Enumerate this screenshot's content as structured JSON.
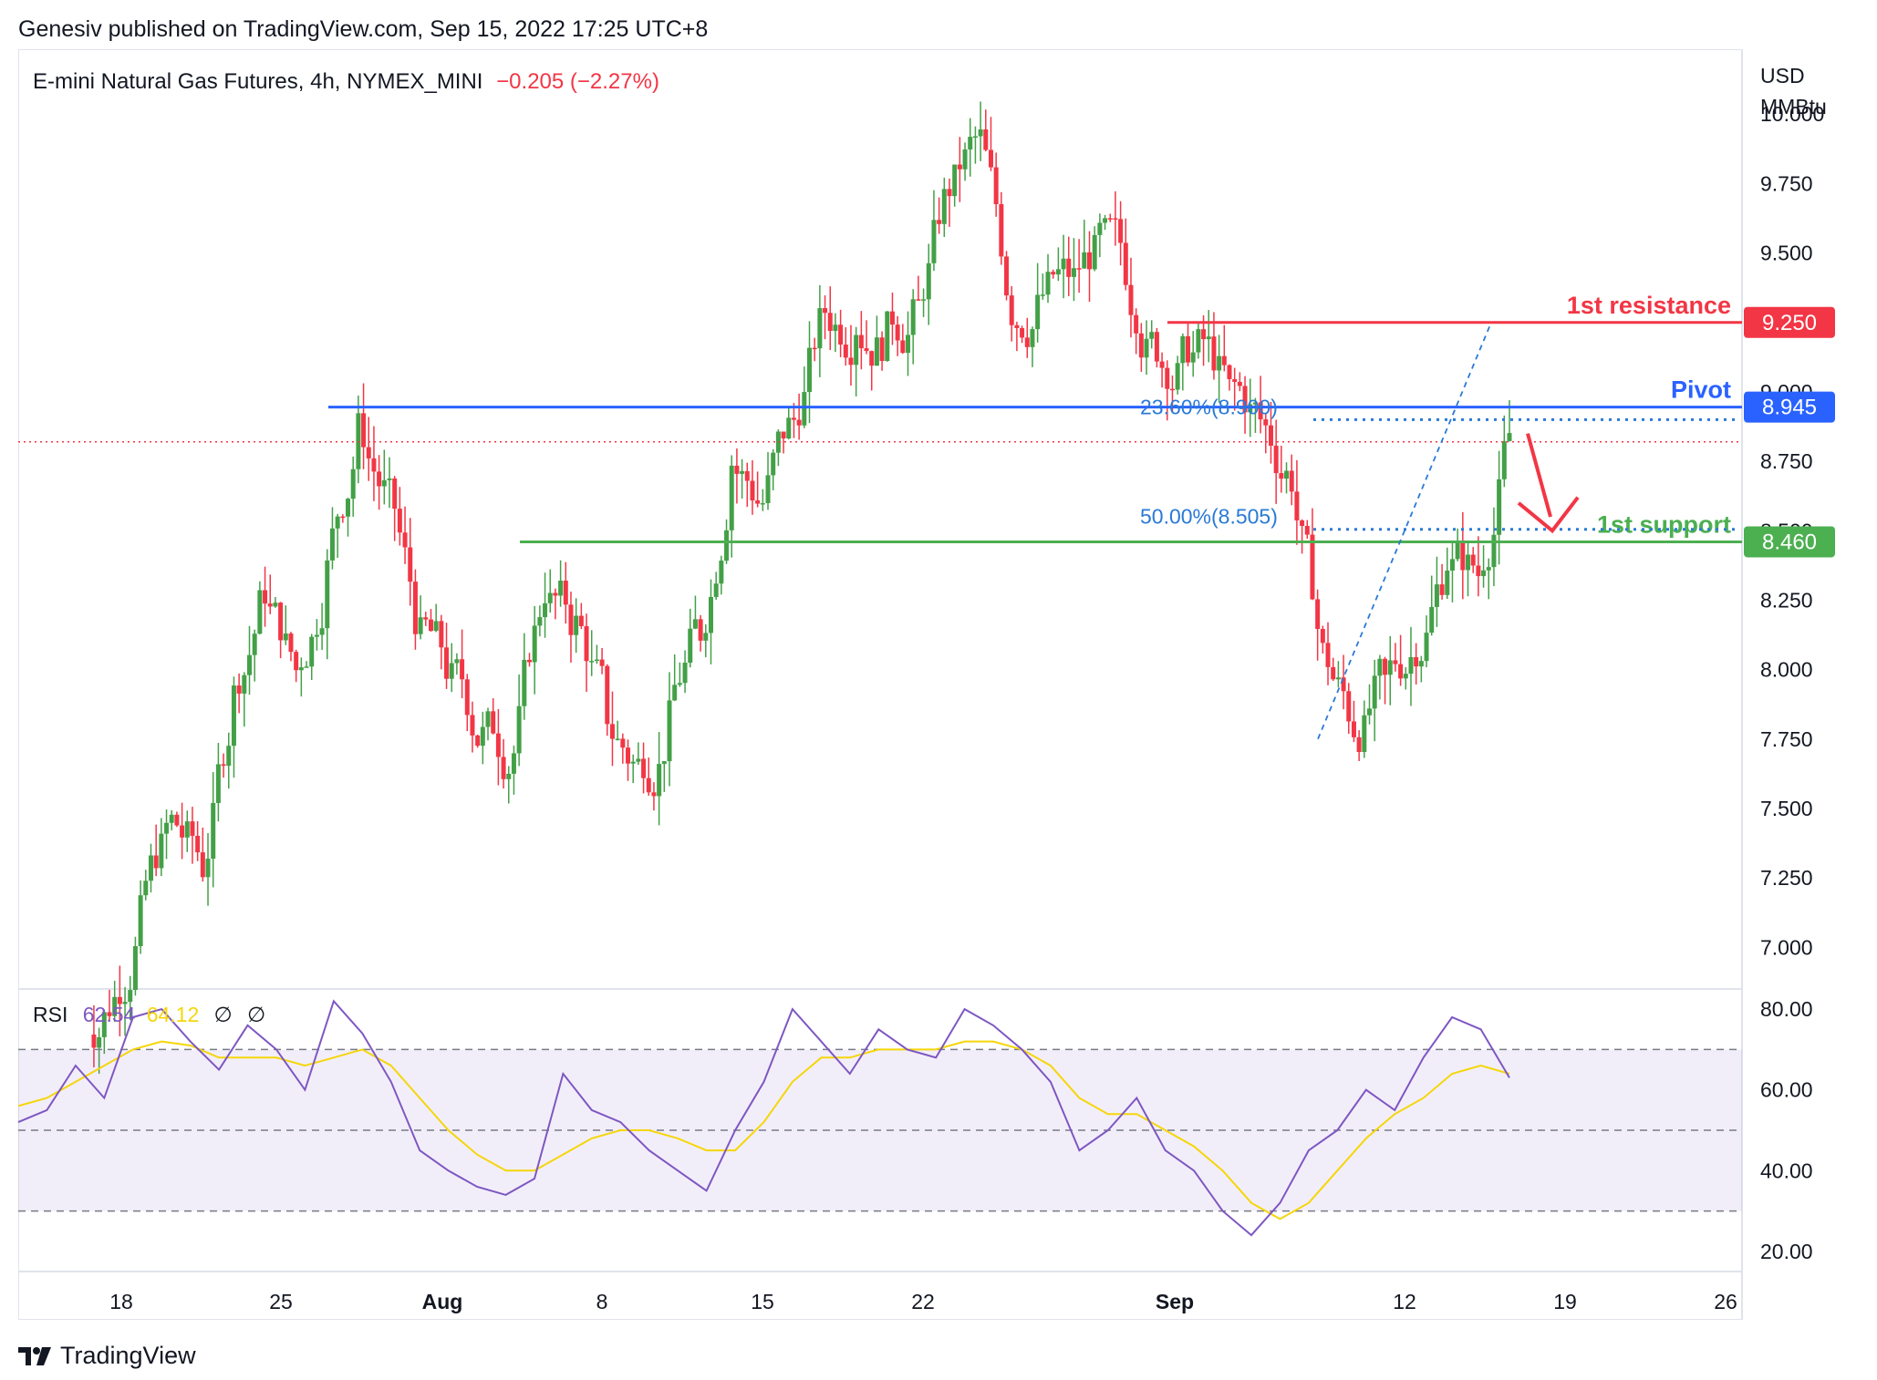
{
  "header": {
    "publisher_line": "Genesiv published on TradingView.com, Sep 15, 2022 17:25 UTC+8"
  },
  "symbol": {
    "name": "E-mini Natural Gas Futures, 4h, NYMEX_MINI",
    "change": "−0.205 (−2.27%)"
  },
  "unit": {
    "line1": "USD",
    "line2": "MMBtu"
  },
  "rsi": {
    "label": "RSI",
    "value": "62.54",
    "ma_value": "64.12",
    "sym1": "∅",
    "sym2": "∅"
  },
  "footer": {
    "brand": "TradingView"
  },
  "colors": {
    "up": "#26a69a",
    "up_candle": "#43a047",
    "down": "#f23645",
    "pivot": "#2962ff",
    "support": "#4caf50",
    "resistance": "#f23645",
    "rsi_line": "#7e57c2",
    "rsi_ma": "#f5d60a",
    "fib": "#2a7ad6"
  },
  "chart_data": [
    {
      "type": "line",
      "title": "E-mini Natural Gas Futures, 4h, NYMEX_MINI",
      "ylabel": "USD MMBtu",
      "ylim": [
        6.85,
        10.05
      ],
      "y_ticks": [
        "10.000",
        "9.750",
        "9.500",
        "9.250",
        "9.000",
        "8.750",
        "8.500",
        "8.250",
        "8.000",
        "7.750",
        "7.500",
        "7.250",
        "7.000"
      ],
      "x_ticks": [
        "18",
        "25",
        "Aug",
        "8",
        "15",
        "22",
        "Sep",
        "12",
        "19",
        "26"
      ],
      "series": [
        {
          "values_note": "",
          "x": [
            "Jul 14",
            "Jul 15",
            "Jul 18",
            "Jul 19",
            "Jul 20",
            "Jul 21",
            "Jul 22",
            "Jul 25",
            "Jul 26",
            "Jul 27",
            "Jul 28",
            "Jul 29",
            "Aug 1",
            "Aug 2",
            "Aug 3",
            "Aug 4",
            "Aug 5",
            "Aug 8",
            "Aug 9",
            "Aug 10",
            "Aug 11",
            "Aug 12",
            "Aug 15",
            "Aug 16",
            "Aug 17",
            "Aug 18",
            "Aug 19",
            "Aug 22",
            "Aug 23",
            "Aug 24",
            "Aug 25",
            "Aug 26",
            "Aug 29",
            "Aug 30",
            "Aug 31",
            "Sep 1",
            "Sep 2",
            "Sep 5",
            "Sep 6",
            "Sep 7",
            "Sep 8",
            "Sep 9",
            "Sep 12",
            "Sep 13",
            "Sep 14",
            "Sep 15"
          ],
          "values": [
            6.8,
            7.1,
            7.45,
            7.3,
            7.9,
            8.3,
            8.0,
            8.35,
            8.85,
            8.6,
            8.1,
            7.95,
            7.75,
            7.7,
            8.3,
            8.15,
            7.85,
            7.65,
            7.8,
            8.15,
            8.75,
            8.6,
            8.9,
            9.3,
            9.25,
            9.2,
            9.3,
            9.75,
            9.9,
            9.3,
            9.35,
            9.4,
            9.55,
            9.3,
            9.1,
            9.15,
            9.0,
            8.9,
            8.7,
            8.05,
            7.8,
            7.95,
            8.1,
            8.4,
            8.35,
            8.85
          ]
        }
      ],
      "levels": [
        {
          "name": "1st resistance",
          "value": "9.250"
        },
        {
          "name": "Pivot",
          "value": "8.945"
        },
        {
          "name": "1st support",
          "value": "8.460"
        }
      ],
      "fib_labels": [
        "23.60%(8.900)",
        "50.00%(8.505)"
      ]
    },
    {
      "type": "line",
      "title": "RSI",
      "ylim": [
        15,
        85
      ],
      "y_ticks": [
        "80.00",
        "60.00",
        "40.00",
        "20.00"
      ],
      "band": [
        30,
        70
      ],
      "series": [
        {
          "name": "RSI",
          "values": [
            52,
            55,
            66,
            58,
            78,
            80,
            72,
            65,
            76,
            70,
            60,
            82,
            74,
            62,
            45,
            40,
            36,
            34,
            38,
            64,
            55,
            52,
            45,
            40,
            35,
            50,
            62,
            80,
            72,
            64,
            75,
            70,
            68,
            80,
            76,
            70,
            62,
            45,
            50,
            58,
            45,
            40,
            30,
            24,
            32,
            45,
            50,
            60,
            55,
            68,
            78,
            75,
            63
          ]
        },
        {
          "name": "RSI MA",
          "values": [
            56,
            58,
            62,
            66,
            70,
            72,
            71,
            68,
            68,
            68,
            66,
            68,
            70,
            66,
            58,
            50,
            44,
            40,
            40,
            44,
            48,
            50,
            50,
            48,
            45,
            45,
            52,
            62,
            68,
            68,
            70,
            70,
            70,
            72,
            72,
            70,
            66,
            58,
            54,
            54,
            50,
            46,
            40,
            32,
            28,
            32,
            40,
            48,
            54,
            58,
            64,
            66,
            64
          ]
        }
      ]
    }
  ]
}
